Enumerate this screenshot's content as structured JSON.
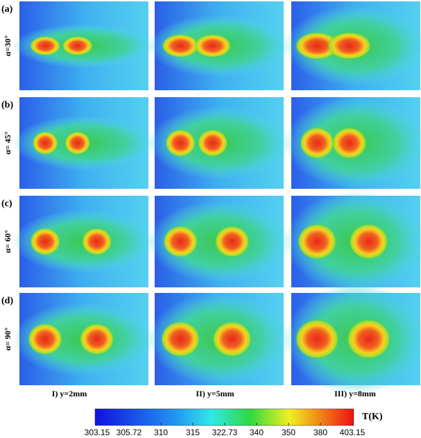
{
  "rows": [
    {
      "letter": "(a)",
      "angle": "α=30°"
    },
    {
      "letter": "(b)",
      "angle": "α= 45°"
    },
    {
      "letter": "(c)",
      "angle": "α= 60°"
    },
    {
      "letter": "(d)",
      "angle": "α= 90°"
    }
  ],
  "columns": [
    "I) y=2mm",
    "II) y=5mm",
    "III) y=8mm"
  ],
  "colorbar": {
    "title": "T(K)",
    "ticks": [
      303.15,
      305.72,
      310,
      315,
      322.73,
      340,
      350,
      380,
      403.15
    ]
  }
}
